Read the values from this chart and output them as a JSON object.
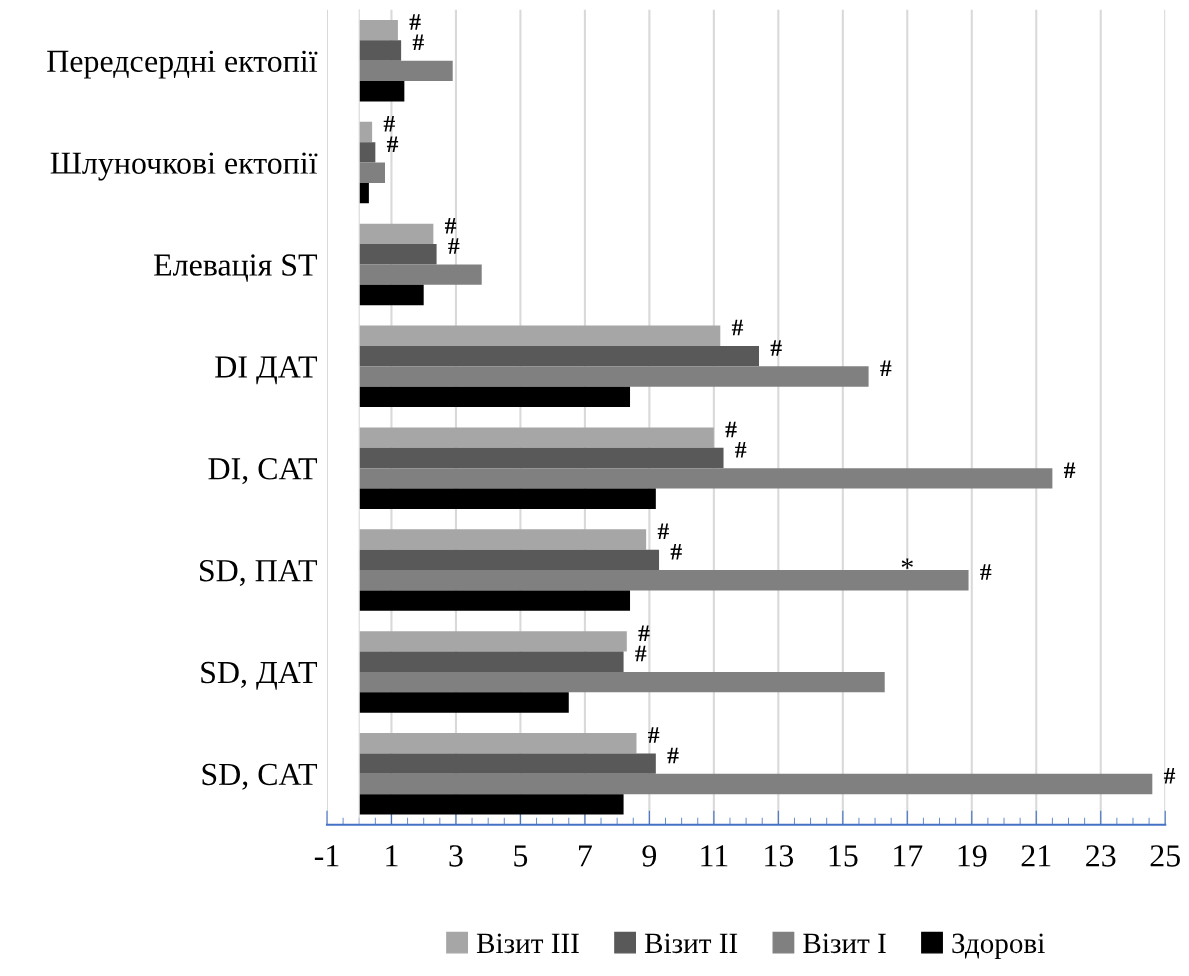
{
  "chart_data": {
    "type": "bar",
    "orientation": "horizontal",
    "categories": [
      "Передсердні ектопії",
      "Шлуночкові ектопії",
      "Елевація ST",
      "DI ДАТ",
      "DI, CAT",
      "SD, ПАТ",
      "SD, ДАТ",
      "SD, CAT"
    ],
    "series": [
      {
        "name": "Візит III",
        "color": "#a6a6a6",
        "values": [
          1.2,
          0.4,
          2.3,
          11.2,
          11.0,
          8.9,
          8.3,
          8.6
        ],
        "value_labels": [
          "#",
          "#",
          "#",
          "#",
          "#",
          "#",
          "#",
          "#"
        ]
      },
      {
        "name": "Візит II",
        "color": "#595959",
        "values": [
          1.3,
          0.5,
          2.4,
          12.4,
          11.3,
          9.3,
          8.2,
          9.2
        ],
        "value_labels": [
          "#",
          "#",
          "#",
          "#",
          "#",
          "#",
          "#",
          "#"
        ]
      },
      {
        "name": "Візит I",
        "color": "#808080",
        "values": [
          2.9,
          0.8,
          3.8,
          15.8,
          21.5,
          18.9,
          16.3,
          24.6
        ],
        "value_labels": [
          null,
          null,
          null,
          "#",
          "#",
          "#",
          null,
          "#"
        ]
      },
      {
        "name": "Здорові",
        "color": "#000000",
        "values": [
          1.4,
          0.3,
          2.0,
          8.4,
          9.2,
          8.4,
          6.5,
          8.2
        ]
      }
    ],
    "annotations": [
      {
        "text": "*",
        "x": 17,
        "y": "SD, ПАТ"
      }
    ],
    "xlim": [
      -1,
      25
    ],
    "xticks": [
      -1,
      1,
      3,
      5,
      7,
      9,
      11,
      13,
      15,
      17,
      19,
      21,
      23,
      25
    ],
    "grid": "x",
    "legend": "bottom"
  }
}
